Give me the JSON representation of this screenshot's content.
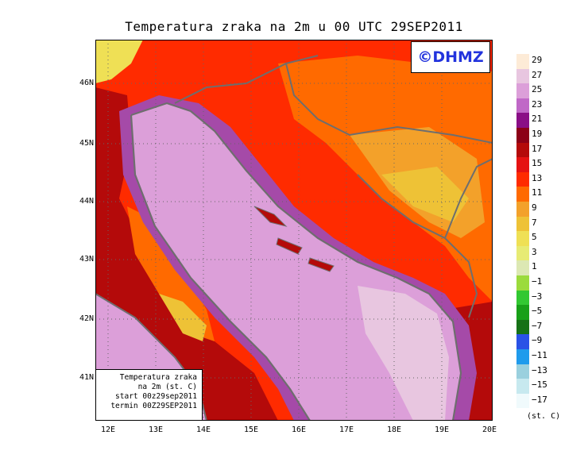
{
  "title": "Temperatura zraka na 2m u 00 UTC 29SEP2011",
  "copyright": "©DHMZ",
  "info_box": {
    "line1": "Temperatura zraka",
    "line2": "na 2m (st. C)",
    "line3": "start 00z29sep2011",
    "line4": "termin 00Z29SEP2011"
  },
  "lat_labels": [
    "46N",
    "45N",
    "44N",
    "43N",
    "42N",
    "41N"
  ],
  "lon_labels": [
    "12E",
    "13E",
    "14E",
    "15E",
    "16E",
    "17E",
    "18E",
    "19E",
    "20E"
  ],
  "legend": {
    "unit": "(st. C)",
    "levels": [
      "29",
      "27",
      "25",
      "23",
      "21",
      "19",
      "17",
      "15",
      "13",
      "11",
      "9",
      "7",
      "5",
      "3",
      "1",
      "−1",
      "−3",
      "−5",
      "−7",
      "−9",
      "−11",
      "−13",
      "−15",
      "−17"
    ],
    "colors": [
      "#fdebd7",
      "#e8c6e0",
      "#dc9fd9",
      "#c068c7",
      "#8a0e86",
      "#8c0017",
      "#b40a0a",
      "#e51212",
      "#ff2b00",
      "#ff6a00",
      "#f3a12a",
      "#eec236",
      "#efe055",
      "#e7eb74",
      "#dce8b3",
      "#9bdb3c",
      "#32c832",
      "#18a018",
      "#167216",
      "#2a52e6",
      "#1f9bec",
      "#9ad0de",
      "#c7e9ef",
      "#f0fafc"
    ]
  },
  "colors": {
    "sea": "#dc9fd9",
    "sea_south": "#e8c6e0",
    "coast_purple": "#a54aa8",
    "land_hot": "#ff2b00",
    "land_dark": "#b40a0a",
    "land_orange": "#ff6a00",
    "land_yellow": "#eec236",
    "border": "#6e6e6e"
  }
}
